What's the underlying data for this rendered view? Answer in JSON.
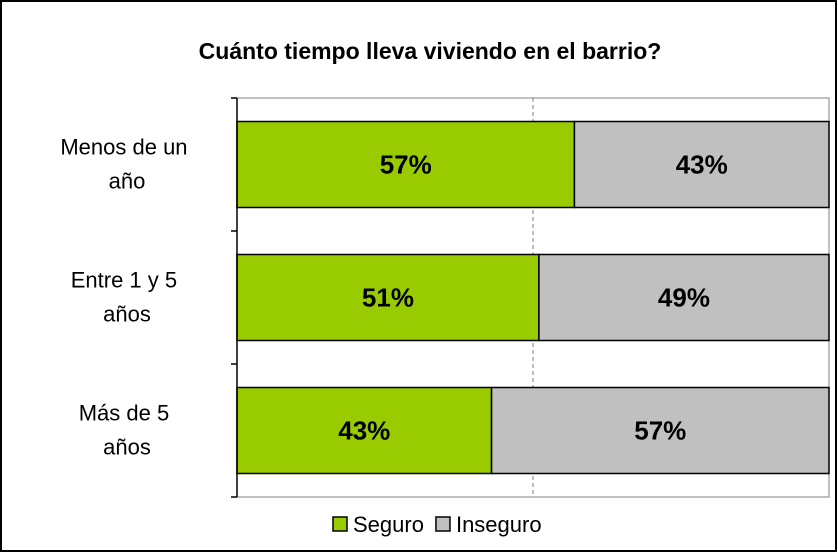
{
  "chart_data": {
    "type": "bar",
    "orientation": "horizontal",
    "stacked": true,
    "title": "Cuánto tiempo lleva viviendo en el barrio?",
    "categories": [
      "Menos de un año",
      "Entre 1 y 5 años",
      "Más de 5 años"
    ],
    "series": [
      {
        "name": "Seguro",
        "color": "#99cc00",
        "values": [
          57,
          51,
          43
        ],
        "value_labels": [
          "57%",
          "51%",
          "43%"
        ]
      },
      {
        "name": "Inseguro",
        "color": "#c0c0c0",
        "values": [
          43,
          49,
          57
        ],
        "value_labels": [
          "43%",
          "49%",
          "57%"
        ]
      }
    ],
    "xlim": [
      0,
      100
    ],
    "grid_x": [
      50
    ],
    "legend": "bottom"
  }
}
